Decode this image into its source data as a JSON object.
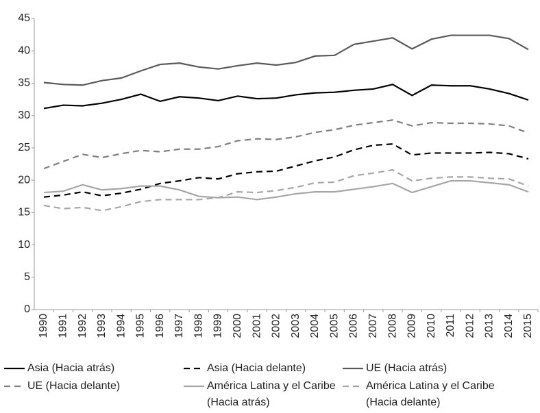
{
  "chart_data": {
    "type": "line",
    "categories": [
      "1990",
      "1991",
      "1992",
      "1993",
      "1994",
      "1995",
      "1996",
      "1997",
      "1998",
      "1999",
      "2000",
      "2001",
      "2002",
      "2003",
      "2004",
      "2005",
      "2006",
      "2007",
      "2008",
      "2009",
      "2010",
      "2011",
      "2012",
      "2013",
      "2014",
      "2015"
    ],
    "ylim": [
      0,
      45
    ],
    "yticks": [
      0,
      5,
      10,
      15,
      20,
      25,
      30,
      35,
      40,
      45
    ],
    "grid": false,
    "series": [
      {
        "name": "Asia (Hacia atrás)",
        "color": "#000000",
        "dashed": false,
        "values": [
          31.1,
          31.6,
          31.5,
          31.9,
          32.5,
          33.3,
          32.2,
          32.9,
          32.7,
          32.3,
          33.0,
          32.6,
          32.7,
          33.2,
          33.5,
          33.6,
          33.9,
          34.1,
          34.8,
          33.1,
          34.7,
          34.6,
          34.6,
          34.1,
          33.4,
          32.4
        ]
      },
      {
        "name": "Asia (Hacia delante)",
        "color": "#000000",
        "dashed": true,
        "values": [
          17.4,
          17.7,
          18.2,
          17.6,
          18.0,
          18.6,
          19.5,
          19.9,
          20.4,
          20.2,
          21.0,
          21.3,
          21.4,
          22.2,
          23.0,
          23.6,
          24.7,
          25.4,
          25.6,
          23.9,
          24.2,
          24.2,
          24.2,
          24.3,
          24.1,
          23.3
        ]
      },
      {
        "name": "UE (Hacia atrás)",
        "color": "#595959",
        "dashed": false,
        "values": [
          35.1,
          34.8,
          34.7,
          35.4,
          35.8,
          36.9,
          37.9,
          38.1,
          37.5,
          37.2,
          37.7,
          38.1,
          37.8,
          38.2,
          39.2,
          39.3,
          41.0,
          41.5,
          42.0,
          40.3,
          41.8,
          42.4,
          42.4,
          42.4,
          41.9,
          40.2
        ]
      },
      {
        "name": "UE (Hacia delante)",
        "color": "#7f7f7f",
        "dashed": true,
        "values": [
          21.8,
          22.9,
          24.0,
          23.5,
          24.1,
          24.6,
          24.4,
          24.8,
          24.8,
          25.2,
          26.1,
          26.4,
          26.3,
          26.7,
          27.4,
          27.8,
          28.5,
          28.9,
          29.3,
          28.4,
          28.9,
          28.8,
          28.8,
          28.7,
          28.4,
          27.3
        ]
      },
      {
        "name": "América Latina y el Caribe (Hacia atrás)",
        "color": "#a6a6a6",
        "dashed": false,
        "values": [
          18.1,
          18.3,
          19.3,
          18.5,
          18.7,
          19.1,
          19.1,
          18.5,
          17.5,
          17.3,
          17.4,
          17.0,
          17.4,
          17.9,
          18.2,
          18.2,
          18.6,
          19.0,
          19.5,
          18.1,
          19.0,
          19.9,
          19.9,
          19.6,
          19.3,
          18.2
        ]
      },
      {
        "name": "América Latina y el Caribe (Hacia delante)",
        "color": "#a6a6a6",
        "dashed": true,
        "values": [
          16.1,
          15.6,
          15.8,
          15.3,
          15.9,
          16.7,
          17.0,
          17.0,
          17.0,
          17.3,
          18.2,
          18.1,
          18.4,
          18.9,
          19.6,
          19.7,
          20.7,
          21.1,
          21.6,
          19.9,
          20.3,
          20.5,
          20.5,
          20.3,
          20.2,
          19.1
        ]
      }
    ]
  }
}
